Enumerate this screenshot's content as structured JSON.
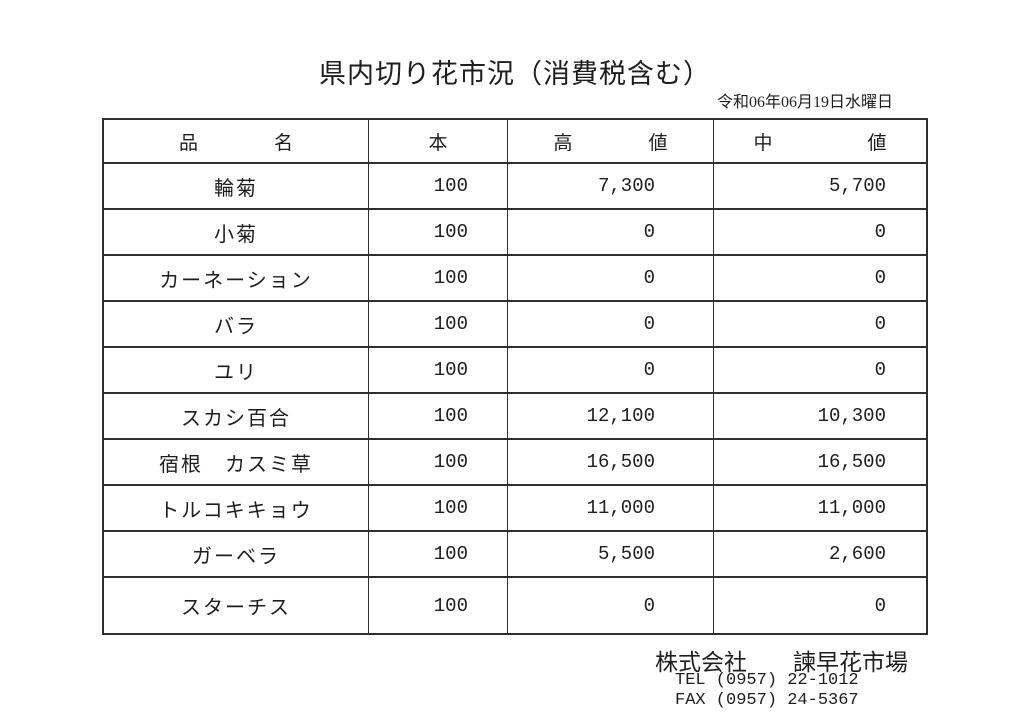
{
  "page": {
    "title": "県内切り花市況（消費税含む）",
    "date": "令和06年06月19日水曜日",
    "text_color": "#1e1e1e",
    "border_color": "#2e2e2e",
    "background_color": "#ffffff"
  },
  "table": {
    "headers": {
      "name": "品　　　　名",
      "qty": "本",
      "high": "高　　　　値",
      "mid": "中　　　　　値"
    },
    "rows": [
      {
        "name": "輪菊",
        "qty": "100",
        "high": "7,300",
        "mid": "5,700"
      },
      {
        "name": "小菊",
        "qty": "100",
        "high": "0",
        "mid": "0"
      },
      {
        "name": "カーネーション",
        "qty": "100",
        "high": "0",
        "mid": "0"
      },
      {
        "name": "バラ",
        "qty": "100",
        "high": "0",
        "mid": "0"
      },
      {
        "name": "ユリ",
        "qty": "100",
        "high": "0",
        "mid": "0"
      },
      {
        "name": "スカシ百合",
        "qty": "100",
        "high": "12,100",
        "mid": "10,300"
      },
      {
        "name": "宿根　カスミ草",
        "qty": "100",
        "high": "16,500",
        "mid": "16,500"
      },
      {
        "name": "トルコキキョウ",
        "qty": "100",
        "high": "11,000",
        "mid": "11,000"
      },
      {
        "name": "ガーベラ",
        "qty": "100",
        "high": "5,500",
        "mid": "2,600"
      },
      {
        "name": "スターチス",
        "qty": "100",
        "high": "0",
        "mid": "0"
      }
    ]
  },
  "footer": {
    "company": "株式会社　　諫早花市場",
    "tel": "TEL (0957) 22-1012",
    "fax": "FAX (0957) 24-5367"
  }
}
